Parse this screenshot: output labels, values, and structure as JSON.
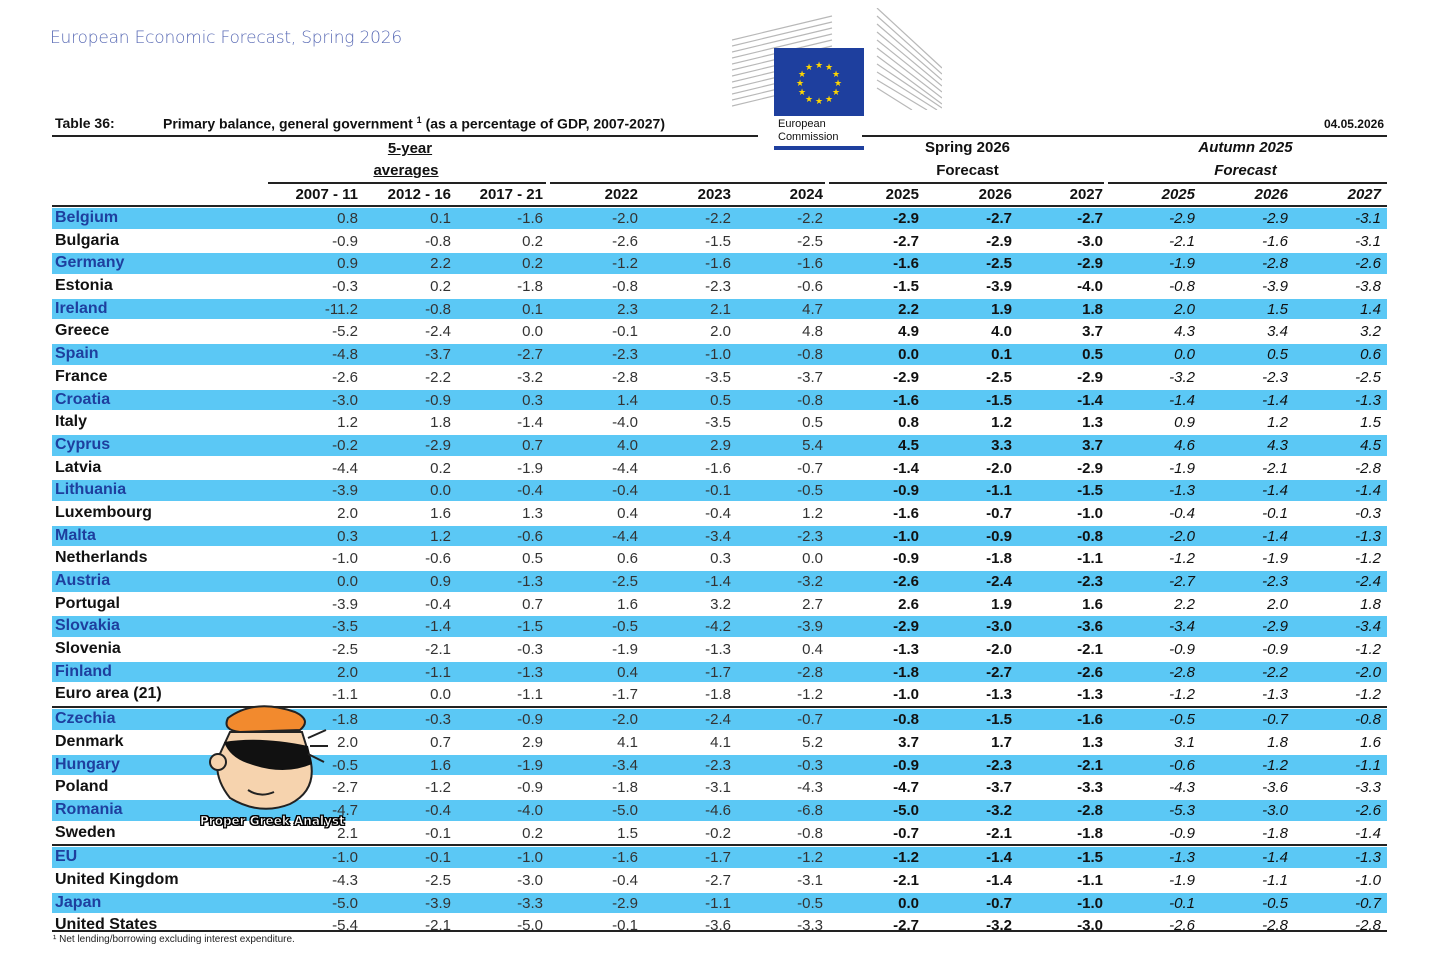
{
  "header_title": "European Economic Forecast, Spring 2026",
  "logo_text_line1": "European",
  "logo_text_line2": "Commission",
  "table_label": "Table 36:",
  "table_title": "Primary balance, general government",
  "table_title_sup": "1",
  "table_title_rest": "(as a percentage of GDP, 2007-2027)",
  "date": "04.05.2026",
  "group_headers": {
    "averages_line1": "5-year",
    "averages_line2": "averages",
    "spring_line1": "Spring 2026",
    "spring_line2": "Forecast",
    "autumn_line1": "Autumn 2025",
    "autumn_line2": "Forecast"
  },
  "columns": [
    "2007 - 11",
    "2012 - 16",
    "2017 - 21",
    "2022",
    "2023",
    "2024",
    "2025",
    "2026",
    "2027",
    "2025",
    "2026",
    "2027"
  ],
  "rows": [
    {
      "name": "Belgium",
      "values": [
        "0.8",
        "0.1",
        "-1.6",
        "-2.0",
        "-2.2",
        "-2.2",
        "-2.9",
        "-2.7",
        "-2.7",
        "-2.9",
        "-2.9",
        "-3.1"
      ]
    },
    {
      "name": "Bulgaria",
      "values": [
        "-0.9",
        "-0.8",
        "0.2",
        "-2.6",
        "-1.5",
        "-2.5",
        "-2.7",
        "-2.9",
        "-3.0",
        "-2.1",
        "-1.6",
        "-3.1"
      ]
    },
    {
      "name": "Germany",
      "values": [
        "0.9",
        "2.2",
        "0.2",
        "-1.2",
        "-1.6",
        "-1.6",
        "-1.6",
        "-2.5",
        "-2.9",
        "-1.9",
        "-2.8",
        "-2.6"
      ]
    },
    {
      "name": "Estonia",
      "values": [
        "-0.3",
        "0.2",
        "-1.8",
        "-0.8",
        "-2.3",
        "-0.6",
        "-1.5",
        "-3.9",
        "-4.0",
        "-0.8",
        "-3.9",
        "-3.8"
      ]
    },
    {
      "name": "Ireland",
      "values": [
        "-11.2",
        "-0.8",
        "0.1",
        "2.3",
        "2.1",
        "4.7",
        "2.2",
        "1.9",
        "1.8",
        "2.0",
        "1.5",
        "1.4"
      ]
    },
    {
      "name": "Greece",
      "values": [
        "-5.2",
        "-2.4",
        "0.0",
        "-0.1",
        "2.0",
        "4.8",
        "4.9",
        "4.0",
        "3.7",
        "4.3",
        "3.4",
        "3.2"
      ]
    },
    {
      "name": "Spain",
      "values": [
        "-4.8",
        "-3.7",
        "-2.7",
        "-2.3",
        "-1.0",
        "-0.8",
        "0.0",
        "0.1",
        "0.5",
        "0.0",
        "0.5",
        "0.6"
      ]
    },
    {
      "name": "France",
      "values": [
        "-2.6",
        "-2.2",
        "-3.2",
        "-2.8",
        "-3.5",
        "-3.7",
        "-2.9",
        "-2.5",
        "-2.9",
        "-3.2",
        "-2.3",
        "-2.5"
      ]
    },
    {
      "name": "Croatia",
      "values": [
        "-3.0",
        "-0.9",
        "0.3",
        "1.4",
        "0.5",
        "-0.8",
        "-1.6",
        "-1.5",
        "-1.4",
        "-1.4",
        "-1.4",
        "-1.3"
      ]
    },
    {
      "name": "Italy",
      "values": [
        "1.2",
        "1.8",
        "-1.4",
        "-4.0",
        "-3.5",
        "0.5",
        "0.8",
        "1.2",
        "1.3",
        "0.9",
        "1.2",
        "1.5"
      ]
    },
    {
      "name": "Cyprus",
      "values": [
        "-0.2",
        "-2.9",
        "0.7",
        "4.0",
        "2.9",
        "5.4",
        "4.5",
        "3.3",
        "3.7",
        "4.6",
        "4.3",
        "4.5"
      ]
    },
    {
      "name": "Latvia",
      "values": [
        "-4.4",
        "0.2",
        "-1.9",
        "-4.4",
        "-1.6",
        "-0.7",
        "-1.4",
        "-2.0",
        "-2.9",
        "-1.9",
        "-2.1",
        "-2.8"
      ]
    },
    {
      "name": "Lithuania",
      "values": [
        "-3.9",
        "0.0",
        "-0.4",
        "-0.4",
        "-0.1",
        "-0.5",
        "-0.9",
        "-1.1",
        "-1.5",
        "-1.3",
        "-1.4",
        "-1.4"
      ]
    },
    {
      "name": "Luxembourg",
      "values": [
        "2.0",
        "1.6",
        "1.3",
        "0.4",
        "-0.4",
        "1.2",
        "-1.6",
        "-0.7",
        "-1.0",
        "-0.4",
        "-0.1",
        "-0.3"
      ]
    },
    {
      "name": "Malta",
      "values": [
        "0.3",
        "1.2",
        "-0.6",
        "-4.4",
        "-3.4",
        "-2.3",
        "-1.0",
        "-0.9",
        "-0.8",
        "-2.0",
        "-1.4",
        "-1.3"
      ]
    },
    {
      "name": "Netherlands",
      "values": [
        "-1.0",
        "-0.6",
        "0.5",
        "0.6",
        "0.3",
        "0.0",
        "-0.9",
        "-1.8",
        "-1.1",
        "-1.2",
        "-1.9",
        "-1.2"
      ]
    },
    {
      "name": "Austria",
      "values": [
        "0.0",
        "0.9",
        "-1.3",
        "-2.5",
        "-1.4",
        "-3.2",
        "-2.6",
        "-2.4",
        "-2.3",
        "-2.7",
        "-2.3",
        "-2.4"
      ]
    },
    {
      "name": "Portugal",
      "values": [
        "-3.9",
        "-0.4",
        "0.7",
        "1.6",
        "3.2",
        "2.7",
        "2.6",
        "1.9",
        "1.6",
        "2.2",
        "2.0",
        "1.8"
      ]
    },
    {
      "name": "Slovakia",
      "values": [
        "-3.5",
        "-1.4",
        "-1.5",
        "-0.5",
        "-4.2",
        "-3.9",
        "-2.9",
        "-3.0",
        "-3.6",
        "-3.4",
        "-2.9",
        "-3.4"
      ]
    },
    {
      "name": "Slovenia",
      "values": [
        "-2.5",
        "-2.1",
        "-0.3",
        "-1.9",
        "-1.3",
        "0.4",
        "-1.3",
        "-2.0",
        "-2.1",
        "-0.9",
        "-0.9",
        "-1.2"
      ]
    },
    {
      "name": "Finland",
      "values": [
        "2.0",
        "-1.1",
        "-1.3",
        "0.4",
        "-1.7",
        "-2.8",
        "-1.8",
        "-2.7",
        "-2.6",
        "-2.8",
        "-2.2",
        "-2.0"
      ]
    },
    {
      "name": "Euro area (21)",
      "values": [
        "-1.1",
        "0.0",
        "-1.1",
        "-1.7",
        "-1.8",
        "-1.2",
        "-1.0",
        "-1.3",
        "-1.3",
        "-1.2",
        "-1.3",
        "-1.2"
      ]
    },
    {
      "name": "Czechia",
      "values": [
        "-1.8",
        "-0.3",
        "-0.9",
        "-2.0",
        "-2.4",
        "-0.7",
        "-0.8",
        "-1.5",
        "-1.6",
        "-0.5",
        "-0.7",
        "-0.8"
      ]
    },
    {
      "name": "Denmark",
      "values": [
        "2.0",
        "0.7",
        "2.9",
        "4.1",
        "4.1",
        "5.2",
        "3.7",
        "1.7",
        "1.3",
        "3.1",
        "1.8",
        "1.6"
      ]
    },
    {
      "name": "Hungary",
      "values": [
        "-0.5",
        "1.6",
        "-1.9",
        "-3.4",
        "-2.3",
        "-0.3",
        "-0.9",
        "-2.3",
        "-2.1",
        "-0.6",
        "-1.2",
        "-1.1"
      ]
    },
    {
      "name": "Poland",
      "values": [
        "-2.7",
        "-1.2",
        "-0.9",
        "-1.8",
        "-3.1",
        "-4.3",
        "-4.7",
        "-3.7",
        "-3.3",
        "-4.3",
        "-3.6",
        "-3.3"
      ]
    },
    {
      "name": "Romania",
      "values": [
        "-4.7",
        "-0.4",
        "-4.0",
        "-5.0",
        "-4.6",
        "-6.8",
        "-5.0",
        "-3.2",
        "-2.8",
        "-5.3",
        "-3.0",
        "-2.6"
      ]
    },
    {
      "name": "Sweden",
      "values": [
        "2.1",
        "-0.1",
        "0.2",
        "1.5",
        "-0.2",
        "-0.8",
        "-0.7",
        "-2.1",
        "-1.8",
        "-0.9",
        "-1.8",
        "-1.4"
      ]
    },
    {
      "name": "EU",
      "values": [
        "-1.0",
        "-0.1",
        "-1.0",
        "-1.6",
        "-1.7",
        "-1.2",
        "-1.2",
        "-1.4",
        "-1.5",
        "-1.3",
        "-1.4",
        "-1.3"
      ]
    },
    {
      "name": "United Kingdom",
      "values": [
        "-4.3",
        "-2.5",
        "-3.0",
        "-0.4",
        "-2.7",
        "-3.1",
        "-2.1",
        "-1.4",
        "-1.1",
        "-1.9",
        "-1.1",
        "-1.0"
      ]
    },
    {
      "name": "Japan",
      "values": [
        "-5.0",
        "-3.9",
        "-3.3",
        "-2.9",
        "-1.1",
        "-0.5",
        "0.0",
        "-0.7",
        "-1.0",
        "-0.1",
        "-0.5",
        "-0.7"
      ]
    },
    {
      "name": "United States",
      "values": [
        "-5.4",
        "-2.1",
        "-5.0",
        "-0.1",
        "-3.6",
        "-3.3",
        "-2.7",
        "-3.2",
        "-3.0",
        "-2.6",
        "-2.8",
        "-2.8"
      ]
    }
  ],
  "footnote": "¹ Net lending/borrowing excluding interest expenditure.",
  "mascot_label": "Proper Greek Analyst",
  "colors": {
    "row_highlight": "#5bc8f5",
    "eu_blue": "#1e3f9e",
    "title_blue": "#5a6bb5"
  },
  "icons": [
    "eu-flag-icon",
    "commission-building-icon",
    "mascot-icon"
  ]
}
